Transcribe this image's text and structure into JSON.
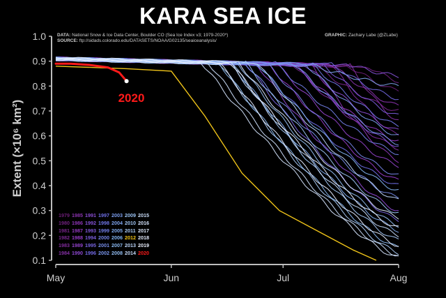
{
  "title": "KARA SEA ICE",
  "credits": {
    "data_label": "DATA:",
    "data_text": "National Snow & Ice Data Center, Boulder CO (Sea Ice Index v3; 1979-2020*)",
    "source_label": "SOURCE:",
    "source_text": "ftp://sidads.colorado.edu/DATASETS/NOAA/G02135/seaiceanalysis/",
    "graphic_label": "GRAPHIC:",
    "graphic_text": "Zachary Labe (@ZLabe)"
  },
  "colors": {
    "background": "#000000",
    "highlight_2020": "#ff1a1a",
    "highlight_2012": "#f0c419",
    "axis": "#bdbdbd"
  },
  "chart_data": {
    "type": "line",
    "title": "KARA SEA ICE",
    "xlabel": "",
    "ylabel": "Extent (×10⁶ km²)",
    "xlim": [
      "May",
      "Aug"
    ],
    "x_ticks": [
      "May",
      "Jun",
      "Jul",
      "Aug"
    ],
    "ylim": [
      0.1,
      1.0
    ],
    "y_ticks": [
      "0.1",
      "0.2",
      "0.3",
      "0.4",
      "0.5",
      "0.6",
      "0.7",
      "0.8",
      "0.9",
      "1.0"
    ],
    "grid": false,
    "legend_position": "bottom-left",
    "annotation": "2020",
    "highlight": {
      "2020": {
        "x": [
          "May 1",
          "May 5",
          "May 10",
          "May 15",
          "May 18",
          "May 20"
        ],
        "y": [
          0.89,
          0.89,
          0.885,
          0.875,
          0.855,
          0.82
        ]
      },
      "2012": {
        "x": [
          "May 1",
          "May 20",
          "Jun 1",
          "Jun 10",
          "Jun 20",
          "Jun 30",
          "Jul 10",
          "Jul 20",
          "Jul 26"
        ],
        "y": [
          0.88,
          0.87,
          0.86,
          0.68,
          0.45,
          0.3,
          0.22,
          0.14,
          0.1
        ]
      }
    },
    "legend_years": [
      [
        "1979",
        "1985",
        "1991",
        "1997",
        "2003",
        "2009",
        "2015"
      ],
      [
        "1980",
        "1986",
        "1992",
        "1998",
        "2004",
        "2010",
        "2016"
      ],
      [
        "1981",
        "1987",
        "1993",
        "1999",
        "2005",
        "2011",
        "2017"
      ],
      [
        "1982",
        "1988",
        "1994",
        "2000",
        "2006",
        "2012",
        "2018"
      ],
      [
        "1983",
        "1989",
        "1995",
        "2001",
        "2007",
        "2013",
        "2019"
      ],
      [
        "1984",
        "1990",
        "1996",
        "2002",
        "2008",
        "2014",
        "2020"
      ]
    ],
    "series": [
      {
        "year": "1979",
        "melt_day": 200,
        "end": 0.78
      },
      {
        "year": "1980",
        "melt_day": 205,
        "end": 0.82
      },
      {
        "year": "1981",
        "melt_day": 190,
        "end": 0.7
      },
      {
        "year": "1982",
        "melt_day": 195,
        "end": 0.6
      },
      {
        "year": "1983",
        "melt_day": 185,
        "end": 0.55
      },
      {
        "year": "1984",
        "melt_day": 200,
        "end": 0.66
      },
      {
        "year": "1985",
        "melt_day": 195,
        "end": 0.72
      },
      {
        "year": "1986",
        "melt_day": 190,
        "end": 0.5
      },
      {
        "year": "1987",
        "melt_day": 185,
        "end": 0.58
      },
      {
        "year": "1988",
        "melt_day": 178,
        "end": 0.42
      },
      {
        "year": "1989",
        "melt_day": 180,
        "end": 0.48
      },
      {
        "year": "1990",
        "melt_day": 175,
        "end": 0.3
      },
      {
        "year": "1991",
        "melt_day": 188,
        "end": 0.62
      },
      {
        "year": "1992",
        "melt_day": 200,
        "end": 0.84
      },
      {
        "year": "1993",
        "melt_day": 185,
        "end": 0.56
      },
      {
        "year": "1994",
        "melt_day": 193,
        "end": 0.68
      },
      {
        "year": "1995",
        "melt_day": 172,
        "end": 0.26
      },
      {
        "year": "1996",
        "melt_day": 195,
        "end": 0.75
      },
      {
        "year": "1997",
        "melt_day": 175,
        "end": 0.4
      },
      {
        "year": "1998",
        "melt_day": 190,
        "end": 0.64
      },
      {
        "year": "1999",
        "melt_day": 180,
        "end": 0.53
      },
      {
        "year": "2000",
        "melt_day": 178,
        "end": 0.44
      },
      {
        "year": "2001",
        "melt_day": 172,
        "end": 0.35
      },
      {
        "year": "2002",
        "melt_day": 185,
        "end": 0.57
      },
      {
        "year": "2003",
        "melt_day": 188,
        "end": 0.6
      },
      {
        "year": "2004",
        "melt_day": 190,
        "end": 0.8
      },
      {
        "year": "2005",
        "melt_day": 168,
        "end": 0.22
      },
      {
        "year": "2006",
        "melt_day": 175,
        "end": 0.38
      },
      {
        "year": "2007",
        "melt_day": 165,
        "end": 0.15
      },
      {
        "year": "2008",
        "melt_day": 170,
        "end": 0.24
      },
      {
        "year": "2009",
        "melt_day": 172,
        "end": 0.29
      },
      {
        "year": "2010",
        "melt_day": 168,
        "end": 0.18
      },
      {
        "year": "2011",
        "melt_day": 165,
        "end": 0.13
      },
      {
        "year": "2012",
        "melt_day": 152,
        "end": 0.1
      },
      {
        "year": "2013",
        "melt_day": 175,
        "end": 0.34
      },
      {
        "year": "2014",
        "melt_day": 168,
        "end": 0.2
      },
      {
        "year": "2015",
        "melt_day": 162,
        "end": 0.12
      },
      {
        "year": "2016",
        "melt_day": 160,
        "end": 0.11
      },
      {
        "year": "2017",
        "melt_day": 170,
        "end": 0.27
      },
      {
        "year": "2018",
        "melt_day": 165,
        "end": 0.16
      },
      {
        "year": "2019",
        "melt_day": 168,
        "end": 0.23
      }
    ]
  }
}
